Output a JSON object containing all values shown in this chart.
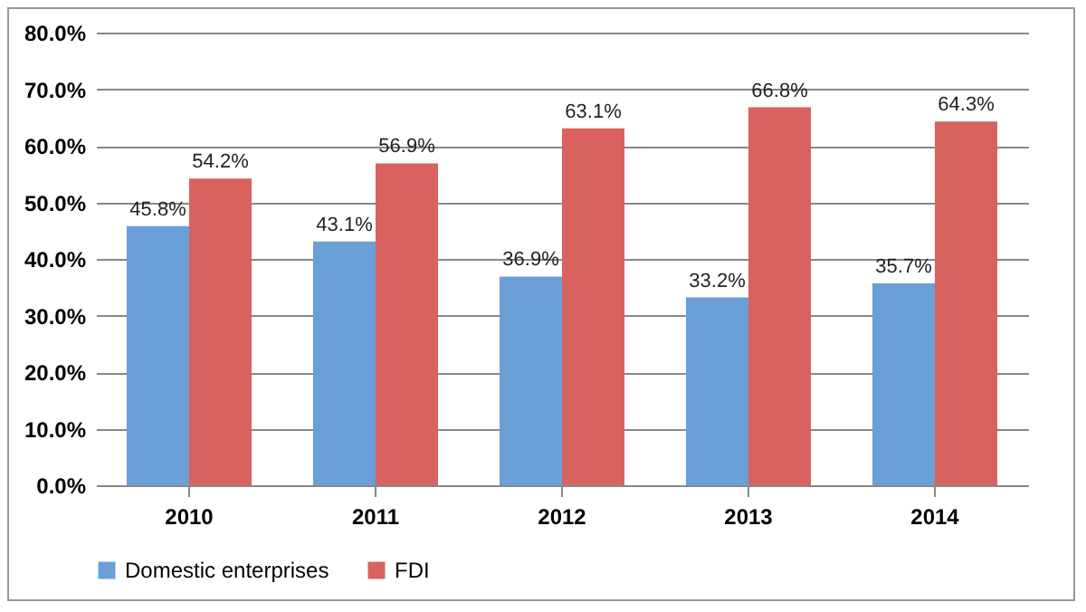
{
  "chart_data": {
    "type": "bar",
    "categories": [
      "2010",
      "2011",
      "2012",
      "2013",
      "2014"
    ],
    "series": [
      {
        "name": "Domestic enterprises",
        "color": "#6a9fd8",
        "values": [
          45.8,
          43.1,
          36.9,
          33.2,
          35.7
        ],
        "value_labels": [
          "45.8%",
          "43.1%",
          "36.9%",
          "33.2%",
          "35.7%"
        ]
      },
      {
        "name": "FDI",
        "color": "#d9625e",
        "values": [
          54.2,
          56.9,
          63.1,
          66.8,
          64.3
        ],
        "value_labels": [
          "54.2%",
          "56.9%",
          "63.1%",
          "66.8%",
          "64.3%"
        ]
      }
    ],
    "ylim": [
      0,
      80
    ],
    "yticks": [
      {
        "value": 0,
        "label": "0.0%"
      },
      {
        "value": 10,
        "label": "10.0%"
      },
      {
        "value": 20,
        "label": "20.0%"
      },
      {
        "value": 30,
        "label": "30.0%"
      },
      {
        "value": 40,
        "label": "40.0%"
      },
      {
        "value": 50,
        "label": "50.0%"
      },
      {
        "value": 60,
        "label": "60.0%"
      },
      {
        "value": 70,
        "label": "70.0%"
      },
      {
        "value": 80,
        "label": "80.0%"
      }
    ],
    "grid": "y",
    "legend": "bottom"
  }
}
